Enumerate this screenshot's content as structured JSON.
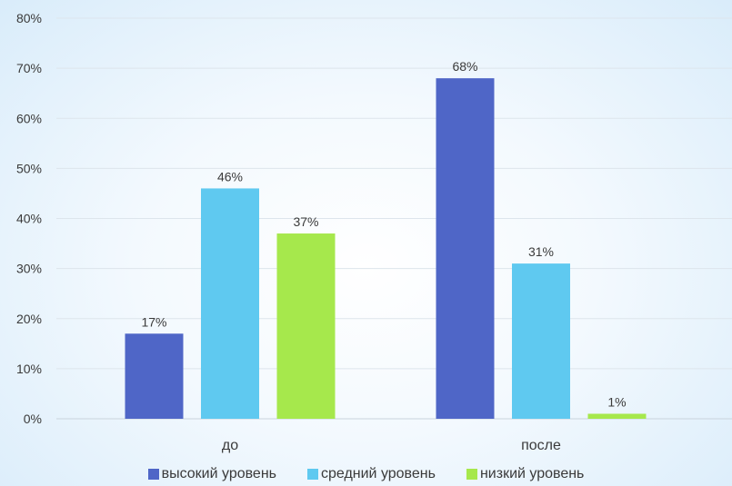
{
  "chart_data": {
    "type": "bar",
    "categories": [
      "до",
      "после"
    ],
    "series": [
      {
        "name": "высокий уровень",
        "values": [
          17,
          68
        ],
        "labels": [
          "17%",
          "68%"
        ],
        "color": "#4f66c7"
      },
      {
        "name": "средний уровень",
        "values": [
          46,
          31
        ],
        "labels": [
          "46%",
          "31%"
        ],
        "color": "#5fc9f0"
      },
      {
        "name": "низкий уровень",
        "values": [
          37,
          1
        ],
        "labels": [
          "37%",
          "1%"
        ],
        "color": "#a6e84c"
      }
    ],
    "yticks": [
      "0%",
      "10%",
      "20%",
      "30%",
      "40%",
      "50%",
      "60%",
      "70%",
      "80%"
    ],
    "ylim": [
      0,
      80
    ],
    "grid": true,
    "legend_position": "bottom",
    "title": "",
    "xlabel": "",
    "ylabel": ""
  }
}
